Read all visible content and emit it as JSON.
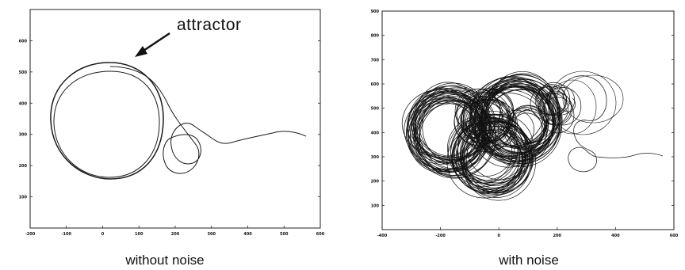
{
  "chart_data": [
    {
      "type": "line",
      "title": "without noise",
      "xlabel": "",
      "ylabel": "",
      "xlim": [
        -200,
        600
      ],
      "ylim": [
        0,
        700
      ],
      "x_ticks": [
        "-200",
        "-100",
        "0",
        "100",
        "200",
        "300",
        "400",
        "500",
        "600"
      ],
      "y_ticks": [
        "100",
        "200",
        "300",
        "400",
        "500",
        "600"
      ],
      "grid": false,
      "annotations": [
        {
          "text": "attractor",
          "points_to": "outer limit cycle"
        }
      ],
      "series": [
        {
          "description_points_x": [
            550,
            480,
            420,
            360,
            290,
            250,
            230,
            220,
            240,
            250,
            230,
            200,
            180,
            150,
            100,
            40,
            -40,
            -110,
            -140,
            -100,
            0,
            120,
            200,
            180,
            100,
            20,
            -80,
            -130,
            -110,
            -40,
            40,
            140,
            190,
            160,
            80,
            0,
            -60,
            -120,
            -130
          ],
          "description_points_y": [
            305,
            318,
            310,
            295,
            285,
            295,
            310,
            300,
            270,
            225,
            200,
            215,
            260,
            420,
            480,
            505,
            490,
            430,
            350,
            250,
            190,
            215,
            330,
            440,
            500,
            510,
            470,
            400,
            300,
            220,
            190,
            220,
            330,
            440,
            500,
            510,
            490,
            430,
            360
          ]
        }
      ]
    },
    {
      "type": "line",
      "title": "with noise",
      "xlabel": "",
      "ylabel": "",
      "xlim": [
        -400,
        600
      ],
      "ylim": [
        0,
        900
      ],
      "x_ticks": [
        "-400",
        "-200",
        "0",
        "200",
        "400",
        "600"
      ],
      "y_ticks": [
        "100",
        "200",
        "300",
        "400",
        "500",
        "600",
        "700",
        "800",
        "900"
      ],
      "grid": false,
      "series": [
        {
          "description_points_x": [
            550,
            480,
            400,
            320,
            260,
            230,
            210,
            240,
            270,
            250,
            200,
            180
          ],
          "description_points_y": [
            310,
            315,
            300,
            290,
            285,
            270,
            250,
            240,
            270,
            300,
            310,
            340
          ]
        }
      ]
    }
  ],
  "captions": {
    "left": "without noise",
    "right": "with noise"
  },
  "annotation": {
    "label": "attractor"
  }
}
